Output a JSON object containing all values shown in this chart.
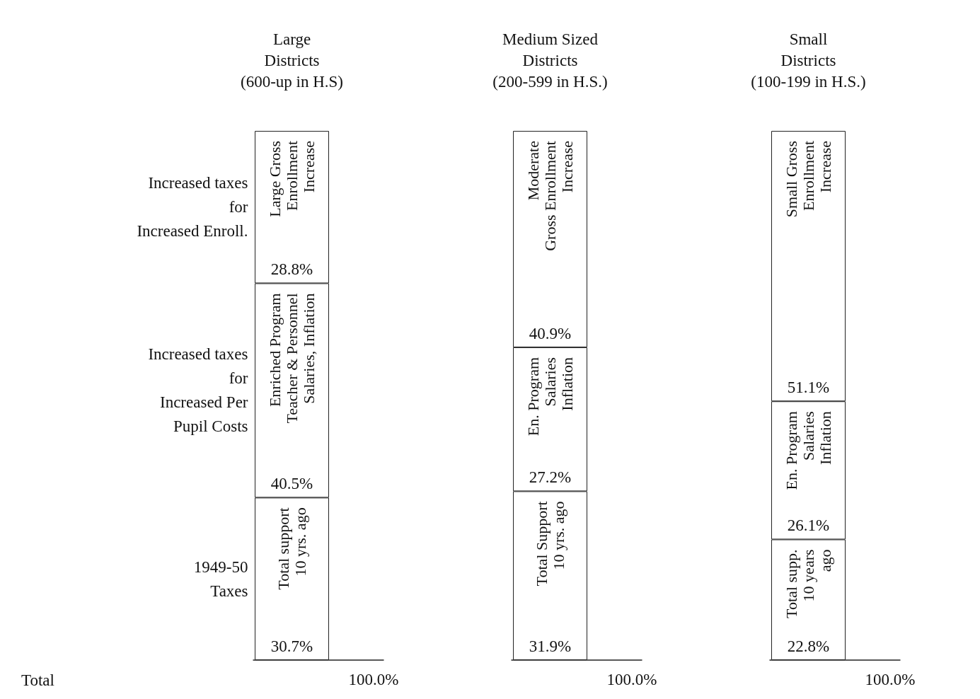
{
  "chart_data": {
    "type": "bar",
    "stacked": true,
    "legend": false,
    "categories": [
      "Large\nDistricts\n(600-up in H.S)",
      "Medium Sized\nDistricts\n(200-599 in H.S.)",
      "Small\nDistricts\n(100-199 in H.S.)"
    ],
    "series": [
      {
        "name": "1949-50\nTaxes",
        "color": "#ffffff",
        "values": [
          30.7,
          31.9,
          22.8
        ],
        "value_labels": [
          "30.7%",
          "31.9%",
          "22.8%"
        ]
      },
      {
        "name": "Increased taxes\nfor\nIncreased Per\nPupil Costs",
        "color": "#ffffff",
        "values": [
          40.5,
          27.2,
          26.1
        ],
        "value_labels": [
          "40.5%",
          "27.2%",
          "26.1%"
        ]
      },
      {
        "name": "Increased taxes\nfor\nIncreased Enroll.",
        "color": "#ffffff",
        "values": [
          28.8,
          40.9,
          51.1
        ],
        "value_labels": [
          "28.8%",
          "40.9%",
          "51.1%"
        ]
      }
    ],
    "totals": [
      "100.0%",
      "100.0%",
      "100.0%"
    ],
    "annotations": [
      "Total",
      {
        "text": "Total support\n10 yrs. ago",
        "x": "Large\nDistricts\n(600-up in H.S)",
        "y": 30.7
      },
      {
        "text": "Enriched Program\nTeacher & Personnel\nSalaries, Inflation",
        "x": "Large\nDistricts\n(600-up in H.S)",
        "y": 71.2
      },
      {
        "text": "Large Gross\nEnrollment\nIncrease",
        "x": "Large\nDistricts\n(600-up in H.S)",
        "y": 100
      },
      {
        "text": "Total Support\n10 yrs. ago",
        "x": "Medium Sized\nDistricts\n(200-599 in H.S.)",
        "y": 31.9
      },
      {
        "text": "En. Program\nSalaries\nInflation",
        "x": "Medium Sized\nDistricts\n(200-599 in H.S.)",
        "y": 59.1
      },
      {
        "text": "Moderate\nGross Enrollment\nIncrease",
        "x": "Medium Sized\nDistricts\n(200-599 in H.S.)",
        "y": 100
      },
      {
        "text": "Total supp.\n10 years\nago",
        "x": "Small\nDistricts\n(100-199 in H.S.)",
        "y": 22.8
      },
      {
        "text": "En. Program\nSalaries\nInflation",
        "x": "Small\nDistricts\n(100-199 in H.S.)",
        "y": 48.9
      },
      {
        "text": "Small Gross\nEnrollment\nIncrease",
        "x": "Small\nDistricts\n(100-199 in H.S.)",
        "y": 100
      }
    ]
  }
}
